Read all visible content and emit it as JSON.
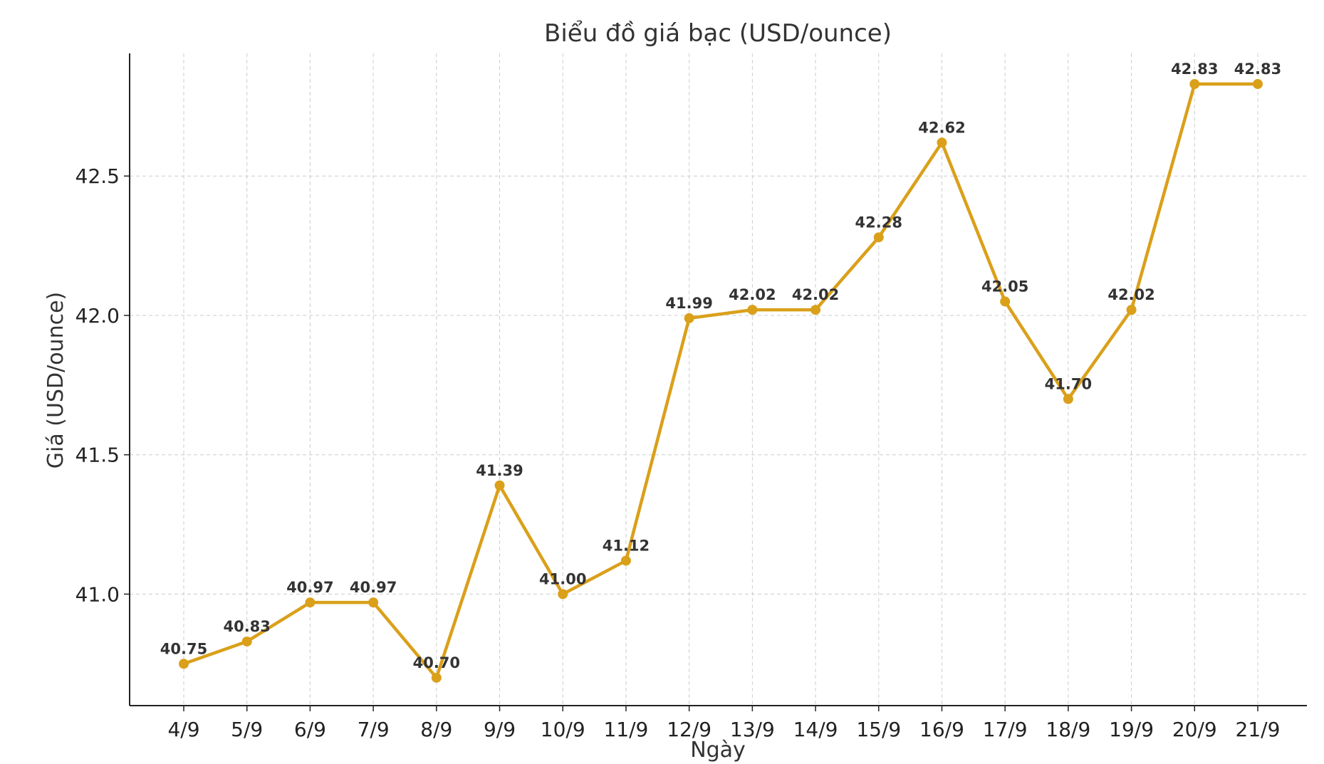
{
  "chart_data": {
    "type": "line",
    "title": "Biểu đồ giá bạc (USD/ounce)",
    "xlabel": "Ngày",
    "ylabel": "Giá (USD/ounce)",
    "categories": [
      "4/9",
      "5/9",
      "6/9",
      "7/9",
      "8/9",
      "9/9",
      "10/9",
      "11/9",
      "12/9",
      "13/9",
      "14/9",
      "15/9",
      "16/9",
      "17/9",
      "18/9",
      "19/9",
      "20/9",
      "21/9"
    ],
    "series": [
      {
        "values": [
          40.75,
          40.83,
          40.97,
          40.97,
          40.7,
          41.39,
          41.0,
          41.12,
          41.99,
          42.02,
          42.02,
          42.28,
          42.62,
          42.05,
          41.7,
          42.02,
          42.83,
          42.83
        ],
        "labels": [
          "40.75",
          "40.83",
          "40.97",
          "40.97",
          "40.70",
          "41.39",
          "41.00",
          "41.12",
          "41.99",
          "42.02",
          "42.02",
          "42.28",
          "42.62",
          "42.05",
          "41.70",
          "42.02",
          "42.83",
          "42.83"
        ],
        "color": "#DAA01A"
      }
    ],
    "yticks": [
      41.0,
      41.5,
      42.0,
      42.5
    ],
    "ytick_labels": [
      "41.0",
      "41.5",
      "42.0",
      "42.5"
    ],
    "ylim": [
      40.6,
      42.94
    ],
    "grid": true,
    "legend": "none"
  }
}
